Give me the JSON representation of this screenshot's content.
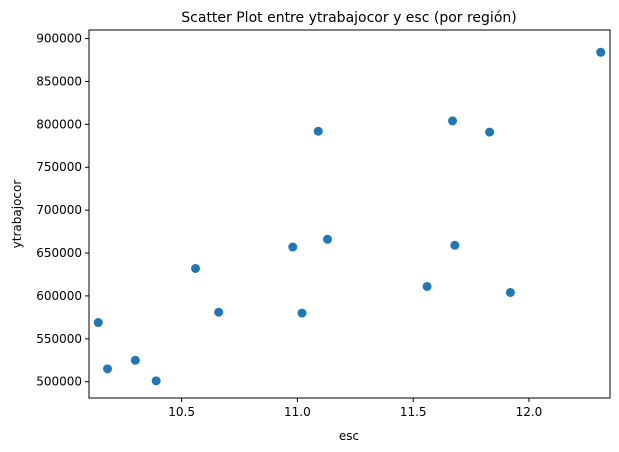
{
  "chart_data": {
    "type": "scatter",
    "title": "Scatter Plot entre ytrabajocor y esc (por región)",
    "xlabel": "esc",
    "ylabel": "ytrabajocor",
    "xlim": [
      10.1,
      12.35
    ],
    "ylim": [
      481000,
      910000
    ],
    "x_ticks": [
      10.5,
      11.0,
      11.5,
      12.0
    ],
    "x_tick_labels": [
      "10.5",
      "11.0",
      "11.5",
      "12.0"
    ],
    "y_ticks": [
      500000,
      550000,
      600000,
      650000,
      700000,
      750000,
      800000,
      850000,
      900000
    ],
    "y_tick_labels": [
      "500000",
      "550000",
      "600000",
      "650000",
      "700000",
      "750000",
      "800000",
      "850000",
      "900000"
    ],
    "grid": false,
    "color": "#1f77b4",
    "points": [
      {
        "x": 10.14,
        "y": 569000
      },
      {
        "x": 10.18,
        "y": 515000
      },
      {
        "x": 10.3,
        "y": 525000
      },
      {
        "x": 10.39,
        "y": 501000
      },
      {
        "x": 10.56,
        "y": 632000
      },
      {
        "x": 10.66,
        "y": 581000
      },
      {
        "x": 10.98,
        "y": 657000
      },
      {
        "x": 11.02,
        "y": 580000
      },
      {
        "x": 11.09,
        "y": 792000
      },
      {
        "x": 11.13,
        "y": 666000
      },
      {
        "x": 11.56,
        "y": 611000
      },
      {
        "x": 11.67,
        "y": 804000
      },
      {
        "x": 11.68,
        "y": 659000
      },
      {
        "x": 11.83,
        "y": 791000
      },
      {
        "x": 11.92,
        "y": 604000
      },
      {
        "x": 12.31,
        "y": 884000
      }
    ]
  }
}
